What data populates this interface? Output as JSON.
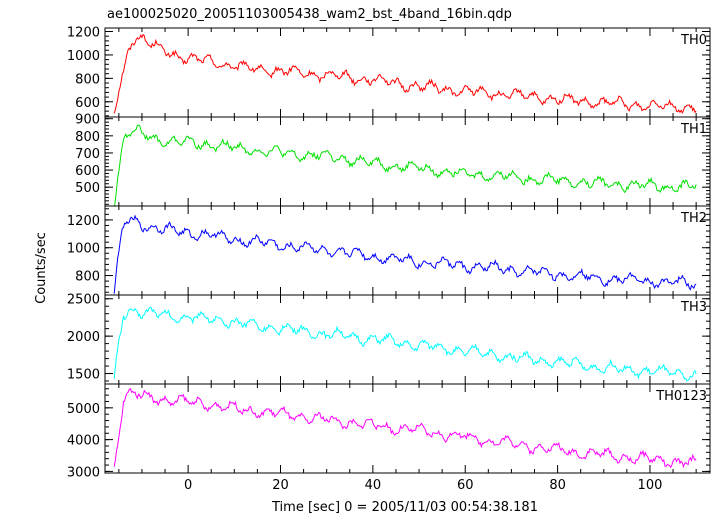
{
  "title": "ae100025020_20051103005438_wam2_bst_4band_16bin.qdp",
  "xlabel": "Time [sec] 0 = 2005/11/03 00:54:38.181",
  "ylabel": "Counts/sec",
  "x_tick_labels": [
    "0",
    "20",
    "40",
    "60",
    "80",
    "100"
  ],
  "chart_data": [
    {
      "type": "line",
      "name": "TH0",
      "color": "#ff0000",
      "xlim": [
        -18,
        113
      ],
      "ylim": [
        470,
        1230
      ],
      "yticks": [
        600,
        800,
        1000,
        1200
      ],
      "ytick_labels": [
        "600",
        "800",
        "1000",
        "1200"
      ],
      "x": [
        -16,
        -15,
        -14,
        -13,
        -12,
        -10,
        -8,
        -5,
        0,
        5,
        10,
        20,
        30,
        40,
        50,
        60,
        70,
        80,
        90,
        100,
        110
      ],
      "y": [
        520,
        700,
        850,
        1050,
        1150,
        1140,
        1080,
        1040,
        960,
        950,
        900,
        860,
        830,
        790,
        730,
        690,
        660,
        620,
        590,
        570,
        550
      ]
    },
    {
      "type": "line",
      "name": "TH1",
      "color": "#00e000",
      "xlim": [
        -18,
        113
      ],
      "ylim": [
        390,
        910
      ],
      "yticks": [
        500,
        600,
        700,
        800,
        900
      ],
      "ytick_labels": [
        "500",
        "600",
        "700",
        "800",
        "900"
      ],
      "x": [
        -16,
        -15,
        -14,
        -13,
        -12,
        -10,
        -8,
        -5,
        0,
        5,
        10,
        20,
        30,
        40,
        50,
        60,
        70,
        80,
        90,
        100,
        110
      ],
      "y": [
        410,
        600,
        780,
        820,
        830,
        810,
        790,
        770,
        760,
        750,
        730,
        700,
        680,
        640,
        610,
        580,
        560,
        540,
        520,
        510,
        500
      ]
    },
    {
      "type": "line",
      "name": "TH2",
      "color": "#0000ff",
      "xlim": [
        -18,
        113
      ],
      "ylim": [
        660,
        1300
      ],
      "yticks": [
        800,
        1000,
        1200
      ],
      "ytick_labels": [
        "800",
        "1000",
        "1200"
      ],
      "x": [
        -16,
        -15,
        -14,
        -13,
        -12,
        -10,
        -8,
        -5,
        0,
        5,
        10,
        20,
        30,
        40,
        50,
        60,
        70,
        80,
        90,
        100,
        110
      ],
      "y": [
        680,
        950,
        1150,
        1200,
        1190,
        1170,
        1150,
        1130,
        1110,
        1090,
        1060,
        1020,
        980,
        940,
        900,
        870,
        840,
        810,
        780,
        760,
        740
      ]
    },
    {
      "type": "line",
      "name": "TH3",
      "color": "#00ffff",
      "xlim": [
        -18,
        113
      ],
      "ylim": [
        1360,
        2550
      ],
      "yticks": [
        1500,
        2000,
        2500
      ],
      "ytick_labels": [
        "1500",
        "2000",
        "2500"
      ],
      "x": [
        -16,
        -15,
        -14,
        -13,
        -12,
        -10,
        -8,
        -5,
        0,
        5,
        10,
        20,
        30,
        40,
        50,
        60,
        70,
        80,
        90,
        100,
        110
      ],
      "y": [
        1400,
        1900,
        2300,
        2350,
        2340,
        2320,
        2300,
        2280,
        2250,
        2230,
        2180,
        2100,
        2030,
        1960,
        1880,
        1800,
        1720,
        1650,
        1580,
        1530,
        1480
      ]
    },
    {
      "type": "line",
      "name": "TH0123",
      "color": "#ff00ff",
      "xlim": [
        -18,
        113
      ],
      "ylim": [
        2950,
        5750
      ],
      "yticks": [
        3000,
        4000,
        5000
      ],
      "ytick_labels": [
        "3000",
        "4000",
        "5000"
      ],
      "x": [
        -16,
        -15,
        -14,
        -13,
        -12,
        -10,
        -8,
        -5,
        0,
        5,
        10,
        20,
        30,
        40,
        50,
        60,
        70,
        80,
        90,
        100,
        110
      ],
      "y": [
        3050,
        4200,
        5300,
        5450,
        5430,
        5380,
        5320,
        5260,
        5180,
        5100,
        4980,
        4800,
        4620,
        4450,
        4280,
        4080,
        3880,
        3680,
        3520,
        3380,
        3250
      ]
    }
  ]
}
